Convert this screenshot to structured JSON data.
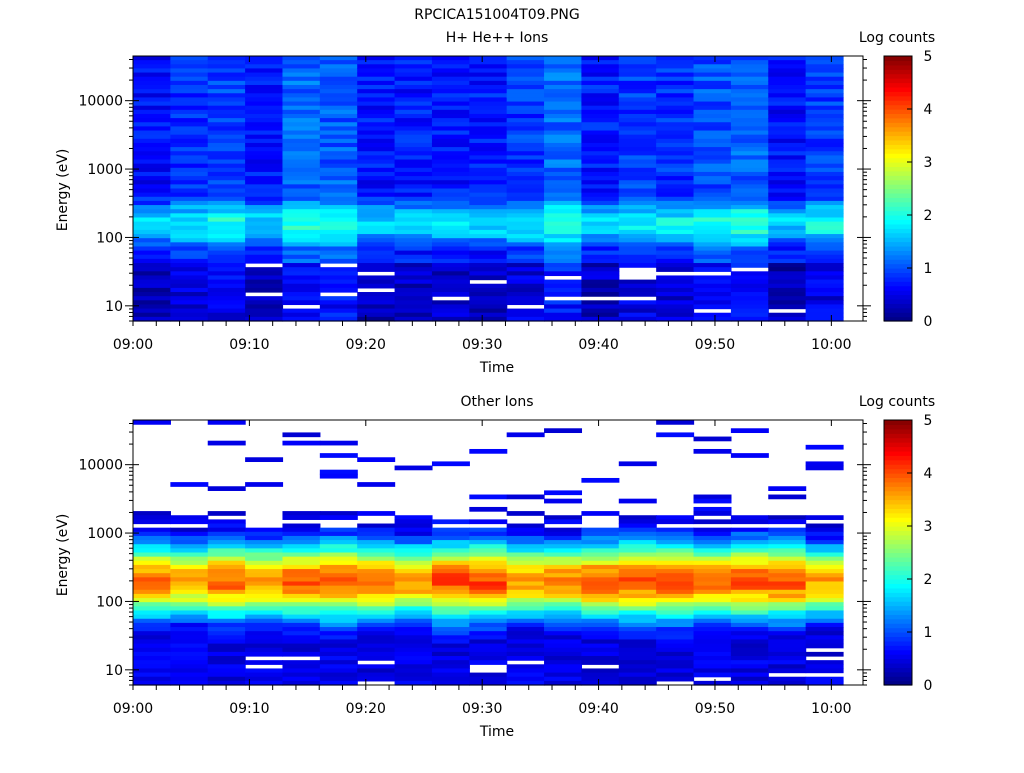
{
  "figure_title": "RPCICA151004T09.PNG",
  "colormap": [
    "#00007f",
    "#0000ff",
    "#007fff",
    "#00ffff",
    "#7fff7f",
    "#ffff00",
    "#ff7f00",
    "#ff0000",
    "#7f0000"
  ],
  "chart_data": [
    {
      "type": "heatmap",
      "title": "H+ He++ Ions",
      "xlabel": "Time",
      "ylabel": "Energy (eV)",
      "x_ticks": [
        "09:00",
        "09:10",
        "09:20",
        "09:30",
        "09:40",
        "09:50",
        "10:00"
      ],
      "x_range": [
        "09:00",
        "10:01"
      ],
      "y_scale": "log",
      "y_range": [
        6,
        45000
      ],
      "y_ticks": [
        "10",
        "100",
        "1000",
        "10000"
      ],
      "y_tick_values": [
        10,
        100,
        1000,
        10000
      ],
      "colorbar": {
        "label": "Log counts",
        "ticks": [
          "0",
          "1",
          "2",
          "3",
          "4",
          "5"
        ],
        "range": [
          0,
          5
        ]
      },
      "bins": {
        "time_steps": 19,
        "energy_channels": 64
      },
      "peak_energy_eV": 160,
      "peak_log_counts": 1.9,
      "background_log_counts": 0.8
    },
    {
      "type": "heatmap",
      "title": "Other Ions",
      "xlabel": "Time",
      "ylabel": "Energy (eV)",
      "x_ticks": [
        "09:00",
        "09:10",
        "09:20",
        "09:30",
        "09:40",
        "09:50",
        "10:00"
      ],
      "x_range": [
        "09:00",
        "10:01"
      ],
      "y_scale": "log",
      "y_range": [
        6,
        45000
      ],
      "y_ticks": [
        "10",
        "100",
        "1000",
        "10000"
      ],
      "y_tick_values": [
        10,
        100,
        1000,
        10000
      ],
      "colorbar": {
        "label": "Log counts",
        "ticks": [
          "0",
          "1",
          "2",
          "3",
          "4",
          "5"
        ],
        "range": [
          0,
          5
        ]
      },
      "bins": {
        "time_steps": 19,
        "energy_channels": 64
      },
      "peak_energy_eV": 200,
      "peak_log_counts": 3.8,
      "background_log_counts": 0.5
    }
  ]
}
